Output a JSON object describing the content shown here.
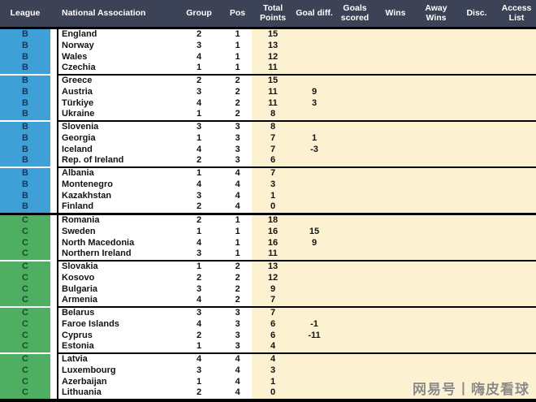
{
  "chart_data": {
    "type": "table",
    "columns": [
      "League",
      "National Association",
      "Group",
      "Pos",
      "Total Points",
      "Goal diff.",
      "Goals scored",
      "Wins",
      "Away Wins",
      "Disc.",
      "Access List"
    ],
    "rows": [
      {
        "league": "B",
        "association": "England",
        "group": "2",
        "pos": "1",
        "total_points": "15",
        "goal_diff": ""
      },
      {
        "league": "B",
        "association": "Norway",
        "group": "3",
        "pos": "1",
        "total_points": "13",
        "goal_diff": ""
      },
      {
        "league": "B",
        "association": "Wales",
        "group": "4",
        "pos": "1",
        "total_points": "12",
        "goal_diff": ""
      },
      {
        "league": "B",
        "association": "Czechia",
        "group": "1",
        "pos": "1",
        "total_points": "11",
        "goal_diff": ""
      },
      {
        "league": "B",
        "association": "Greece",
        "group": "2",
        "pos": "2",
        "total_points": "15",
        "goal_diff": ""
      },
      {
        "league": "B",
        "association": "Austria",
        "group": "3",
        "pos": "2",
        "total_points": "11",
        "goal_diff": "9"
      },
      {
        "league": "B",
        "association": "Türkiye",
        "group": "4",
        "pos": "2",
        "total_points": "11",
        "goal_diff": "3"
      },
      {
        "league": "B",
        "association": "Ukraine",
        "group": "1",
        "pos": "2",
        "total_points": "8",
        "goal_diff": ""
      },
      {
        "league": "B",
        "association": "Slovenia",
        "group": "3",
        "pos": "3",
        "total_points": "8",
        "goal_diff": ""
      },
      {
        "league": "B",
        "association": "Georgia",
        "group": "1",
        "pos": "3",
        "total_points": "7",
        "goal_diff": "1"
      },
      {
        "league": "B",
        "association": "Iceland",
        "group": "4",
        "pos": "3",
        "total_points": "7",
        "goal_diff": "-3"
      },
      {
        "league": "B",
        "association": "Rep. of Ireland",
        "group": "2",
        "pos": "3",
        "total_points": "6",
        "goal_diff": ""
      },
      {
        "league": "B",
        "association": "Albania",
        "group": "1",
        "pos": "4",
        "total_points": "7",
        "goal_diff": ""
      },
      {
        "league": "B",
        "association": "Montenegro",
        "group": "4",
        "pos": "4",
        "total_points": "3",
        "goal_diff": ""
      },
      {
        "league": "B",
        "association": "Kazakhstan",
        "group": "3",
        "pos": "4",
        "total_points": "1",
        "goal_diff": ""
      },
      {
        "league": "B",
        "association": "Finland",
        "group": "2",
        "pos": "4",
        "total_points": "0",
        "goal_diff": ""
      },
      {
        "league": "C",
        "association": "Romania",
        "group": "2",
        "pos": "1",
        "total_points": "18",
        "goal_diff": ""
      },
      {
        "league": "C",
        "association": "Sweden",
        "group": "1",
        "pos": "1",
        "total_points": "16",
        "goal_diff": "15"
      },
      {
        "league": "C",
        "association": "North Macedonia",
        "group": "4",
        "pos": "1",
        "total_points": "16",
        "goal_diff": "9"
      },
      {
        "league": "C",
        "association": "Northern Ireland",
        "group": "3",
        "pos": "1",
        "total_points": "11",
        "goal_diff": ""
      },
      {
        "league": "C",
        "association": "Slovakia",
        "group": "1",
        "pos": "2",
        "total_points": "13",
        "goal_diff": ""
      },
      {
        "league": "C",
        "association": "Kosovo",
        "group": "2",
        "pos": "2",
        "total_points": "12",
        "goal_diff": ""
      },
      {
        "league": "C",
        "association": "Bulgaria",
        "group": "3",
        "pos": "2",
        "total_points": "9",
        "goal_diff": ""
      },
      {
        "league": "C",
        "association": "Armenia",
        "group": "4",
        "pos": "2",
        "total_points": "7",
        "goal_diff": ""
      },
      {
        "league": "C",
        "association": "Belarus",
        "group": "3",
        "pos": "3",
        "total_points": "7",
        "goal_diff": ""
      },
      {
        "league": "C",
        "association": "Faroe Islands",
        "group": "4",
        "pos": "3",
        "total_points": "6",
        "goal_diff": "-1"
      },
      {
        "league": "C",
        "association": "Cyprus",
        "group": "2",
        "pos": "3",
        "total_points": "6",
        "goal_diff": "-11"
      },
      {
        "league": "C",
        "association": "Estonia",
        "group": "1",
        "pos": "3",
        "total_points": "4",
        "goal_diff": ""
      },
      {
        "league": "C",
        "association": "Latvia",
        "group": "4",
        "pos": "4",
        "total_points": "4",
        "goal_diff": ""
      },
      {
        "league": "C",
        "association": "Luxembourg",
        "group": "3",
        "pos": "4",
        "total_points": "3",
        "goal_diff": ""
      },
      {
        "league": "C",
        "association": "Azerbaijan",
        "group": "1",
        "pos": "4",
        "total_points": "1",
        "goal_diff": ""
      },
      {
        "league": "C",
        "association": "Lithuania",
        "group": "2",
        "pos": "4",
        "total_points": "0",
        "goal_diff": ""
      }
    ]
  },
  "watermark": {
    "text": "网易号丨嗨皮看球"
  },
  "colors": {
    "header_bg": "#3C4357",
    "header_text": "#FFFFFF",
    "league_b_bg": "#3FA0D8",
    "league_b_text": "#17375E",
    "league_c_bg": "#4EAE62",
    "league_c_text": "#17512A",
    "beige_cells": "#FCF2D2",
    "separator": "#000000"
  }
}
